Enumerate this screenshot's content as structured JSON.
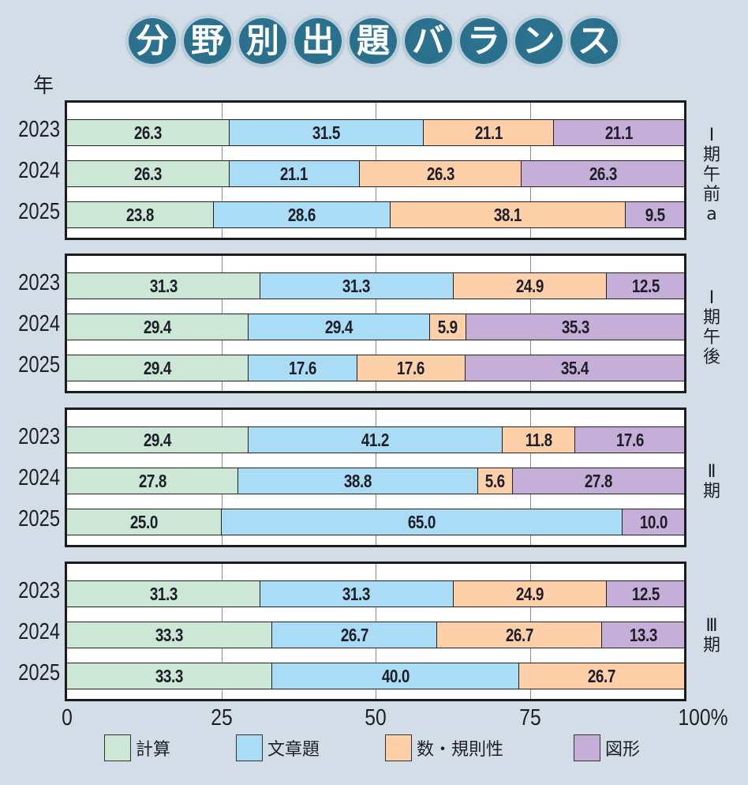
{
  "title_chars": [
    "分",
    "野",
    "別",
    "出",
    "題",
    "バ",
    "ラ",
    "ン",
    "ス"
  ],
  "colors": {
    "background": "#d3dde7",
    "title_bubble": "#2a6f8c",
    "計算": "#cde7d6",
    "文章題": "#aadcf6",
    "数・規則性": "#fdd0aa",
    "図形": "#c5afd8"
  },
  "chart_data": {
    "type": "bar",
    "orientation": "horizontal",
    "stacked": true,
    "title": "分野別出題バランス",
    "ylabel": "年",
    "xlabel": "",
    "xlim": [
      0,
      100
    ],
    "x_ticks": [
      "0",
      "25",
      "50",
      "75",
      "100%"
    ],
    "x_tick_values": [
      0,
      25,
      50,
      75,
      100
    ],
    "grid": true,
    "legend_position": "bottom",
    "categories_order": [
      "計算",
      "文章題",
      "数・規則性",
      "図形"
    ],
    "groups": [
      {
        "name": "Ⅰ期午前a",
        "label_lines": [
          "Ⅰ",
          "期",
          "午",
          "前",
          "a"
        ],
        "rows": [
          {
            "year": "2023",
            "values": [
              26.3,
              31.5,
              21.1,
              21.1
            ]
          },
          {
            "year": "2024",
            "values": [
              26.3,
              21.1,
              26.3,
              26.3
            ]
          },
          {
            "year": "2025",
            "values": [
              23.8,
              28.6,
              38.1,
              9.5
            ]
          }
        ]
      },
      {
        "name": "Ⅰ期午後",
        "label_lines": [
          "Ⅰ",
          "期",
          "午",
          "後"
        ],
        "rows": [
          {
            "year": "2023",
            "values": [
              31.3,
              31.3,
              24.9,
              12.5
            ]
          },
          {
            "year": "2024",
            "values": [
              29.4,
              29.4,
              5.9,
              35.3
            ]
          },
          {
            "year": "2025",
            "values": [
              29.4,
              17.6,
              17.6,
              35.4
            ]
          }
        ]
      },
      {
        "name": "Ⅱ期",
        "label_lines": [
          "Ⅱ",
          "期"
        ],
        "rows": [
          {
            "year": "2023",
            "values": [
              29.4,
              41.2,
              11.8,
              17.6
            ]
          },
          {
            "year": "2024",
            "values": [
              27.8,
              38.8,
              5.6,
              27.8
            ]
          },
          {
            "year": "2025",
            "values": [
              25.0,
              65.0,
              0,
              10.0
            ]
          }
        ]
      },
      {
        "name": "Ⅲ期",
        "label_lines": [
          "Ⅲ",
          "期"
        ],
        "rows": [
          {
            "year": "2023",
            "values": [
              31.3,
              31.3,
              24.9,
              12.5
            ]
          },
          {
            "year": "2024",
            "values": [
              33.3,
              26.7,
              26.7,
              13.3
            ]
          },
          {
            "year": "2025",
            "values": [
              33.3,
              40.0,
              26.7,
              0
            ]
          }
        ]
      }
    ],
    "legend": [
      {
        "label": "計算",
        "color": "#cde7d6"
      },
      {
        "label": "文章題",
        "color": "#aadcf6"
      },
      {
        "label": "数・規則性",
        "color": "#fdd0aa"
      },
      {
        "label": "図形",
        "color": "#c5afd8"
      }
    ]
  }
}
